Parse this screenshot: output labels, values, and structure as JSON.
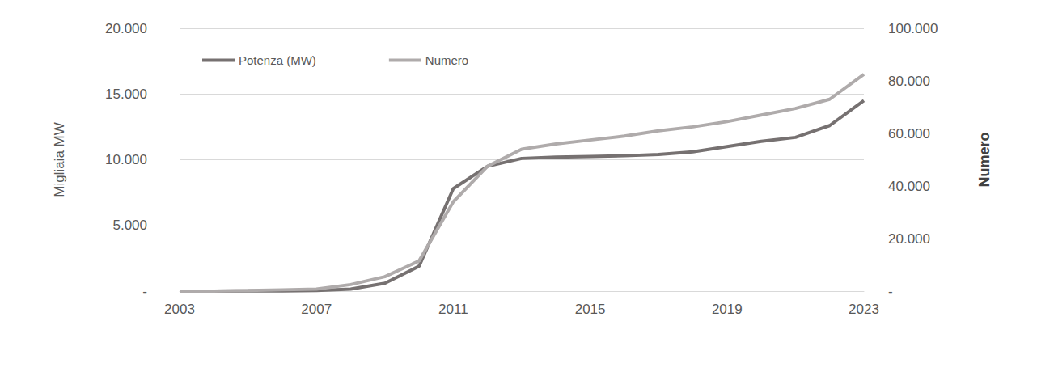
{
  "chart_data": {
    "type": "line",
    "x": [
      2003,
      2004,
      2005,
      2006,
      2007,
      2008,
      2009,
      2010,
      2011,
      2012,
      2013,
      2014,
      2015,
      2016,
      2017,
      2018,
      2019,
      2020,
      2021,
      2022,
      2023
    ],
    "xlim": [
      2003,
      2023
    ],
    "xticks": [
      2003,
      2007,
      2011,
      2015,
      2019,
      2023
    ],
    "ylabel": "Migliaia MW",
    "ylim": [
      0,
      20000
    ],
    "yticks": [
      {
        "value": 0,
        "label": "-"
      },
      {
        "value": 5000,
        "label": "5.000"
      },
      {
        "value": 10000,
        "label": "10.000"
      },
      {
        "value": 15000,
        "label": "15.000"
      },
      {
        "value": 20000,
        "label": "20.000"
      }
    ],
    "y2label": "Numero",
    "y2lim": [
      0,
      100000
    ],
    "y2ticks": [
      {
        "value": 0,
        "label": "-"
      },
      {
        "value": 20000,
        "label": "20.000"
      },
      {
        "value": 40000,
        "label": "40.000"
      },
      {
        "value": 60000,
        "label": "60.000"
      },
      {
        "value": 80000,
        "label": "80.000"
      },
      {
        "value": 100000,
        "label": "100.000"
      }
    ],
    "grid": true,
    "legend": "top-left",
    "series": [
      {
        "name": "Potenza (MW)",
        "color": "#767171",
        "values": [
          0,
          0,
          10,
          20,
          50,
          150,
          600,
          1900,
          7800,
          9500,
          10100,
          10200,
          10250,
          10300,
          10400,
          10600,
          11000,
          11400,
          11700,
          12600,
          14500
        ]
      },
      {
        "name": "Numero",
        "color": "#afabab",
        "axis": "y2",
        "values": [
          0,
          0,
          200,
          500,
          800,
          2500,
          5500,
          11500,
          34000,
          47500,
          54000,
          56000,
          57500,
          59000,
          61000,
          62500,
          64500,
          67000,
          69500,
          73000,
          82500
        ]
      }
    ]
  }
}
